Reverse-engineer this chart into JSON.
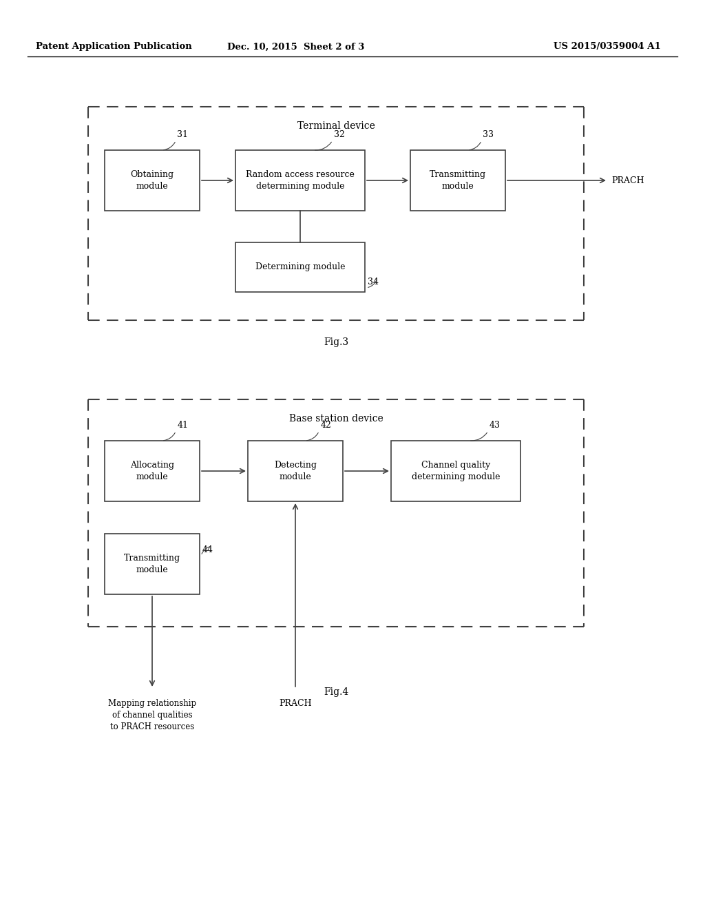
{
  "header_left": "Patent Application Publication",
  "header_mid": "Dec. 10, 2015  Sheet 2 of 3",
  "header_right": "US 2015/0359004 A1",
  "bg_color": "#ffffff",
  "text_color": "#000000",
  "fig3_label": "Fig.3",
  "fig4_label": "Fig.4",
  "fig3_title": "Terminal device",
  "fig4_title": "Base station device",
  "prach_label": "PRACH",
  "mapping_label": "Mapping relationship\nof channel qualities\nto PRACH resources"
}
